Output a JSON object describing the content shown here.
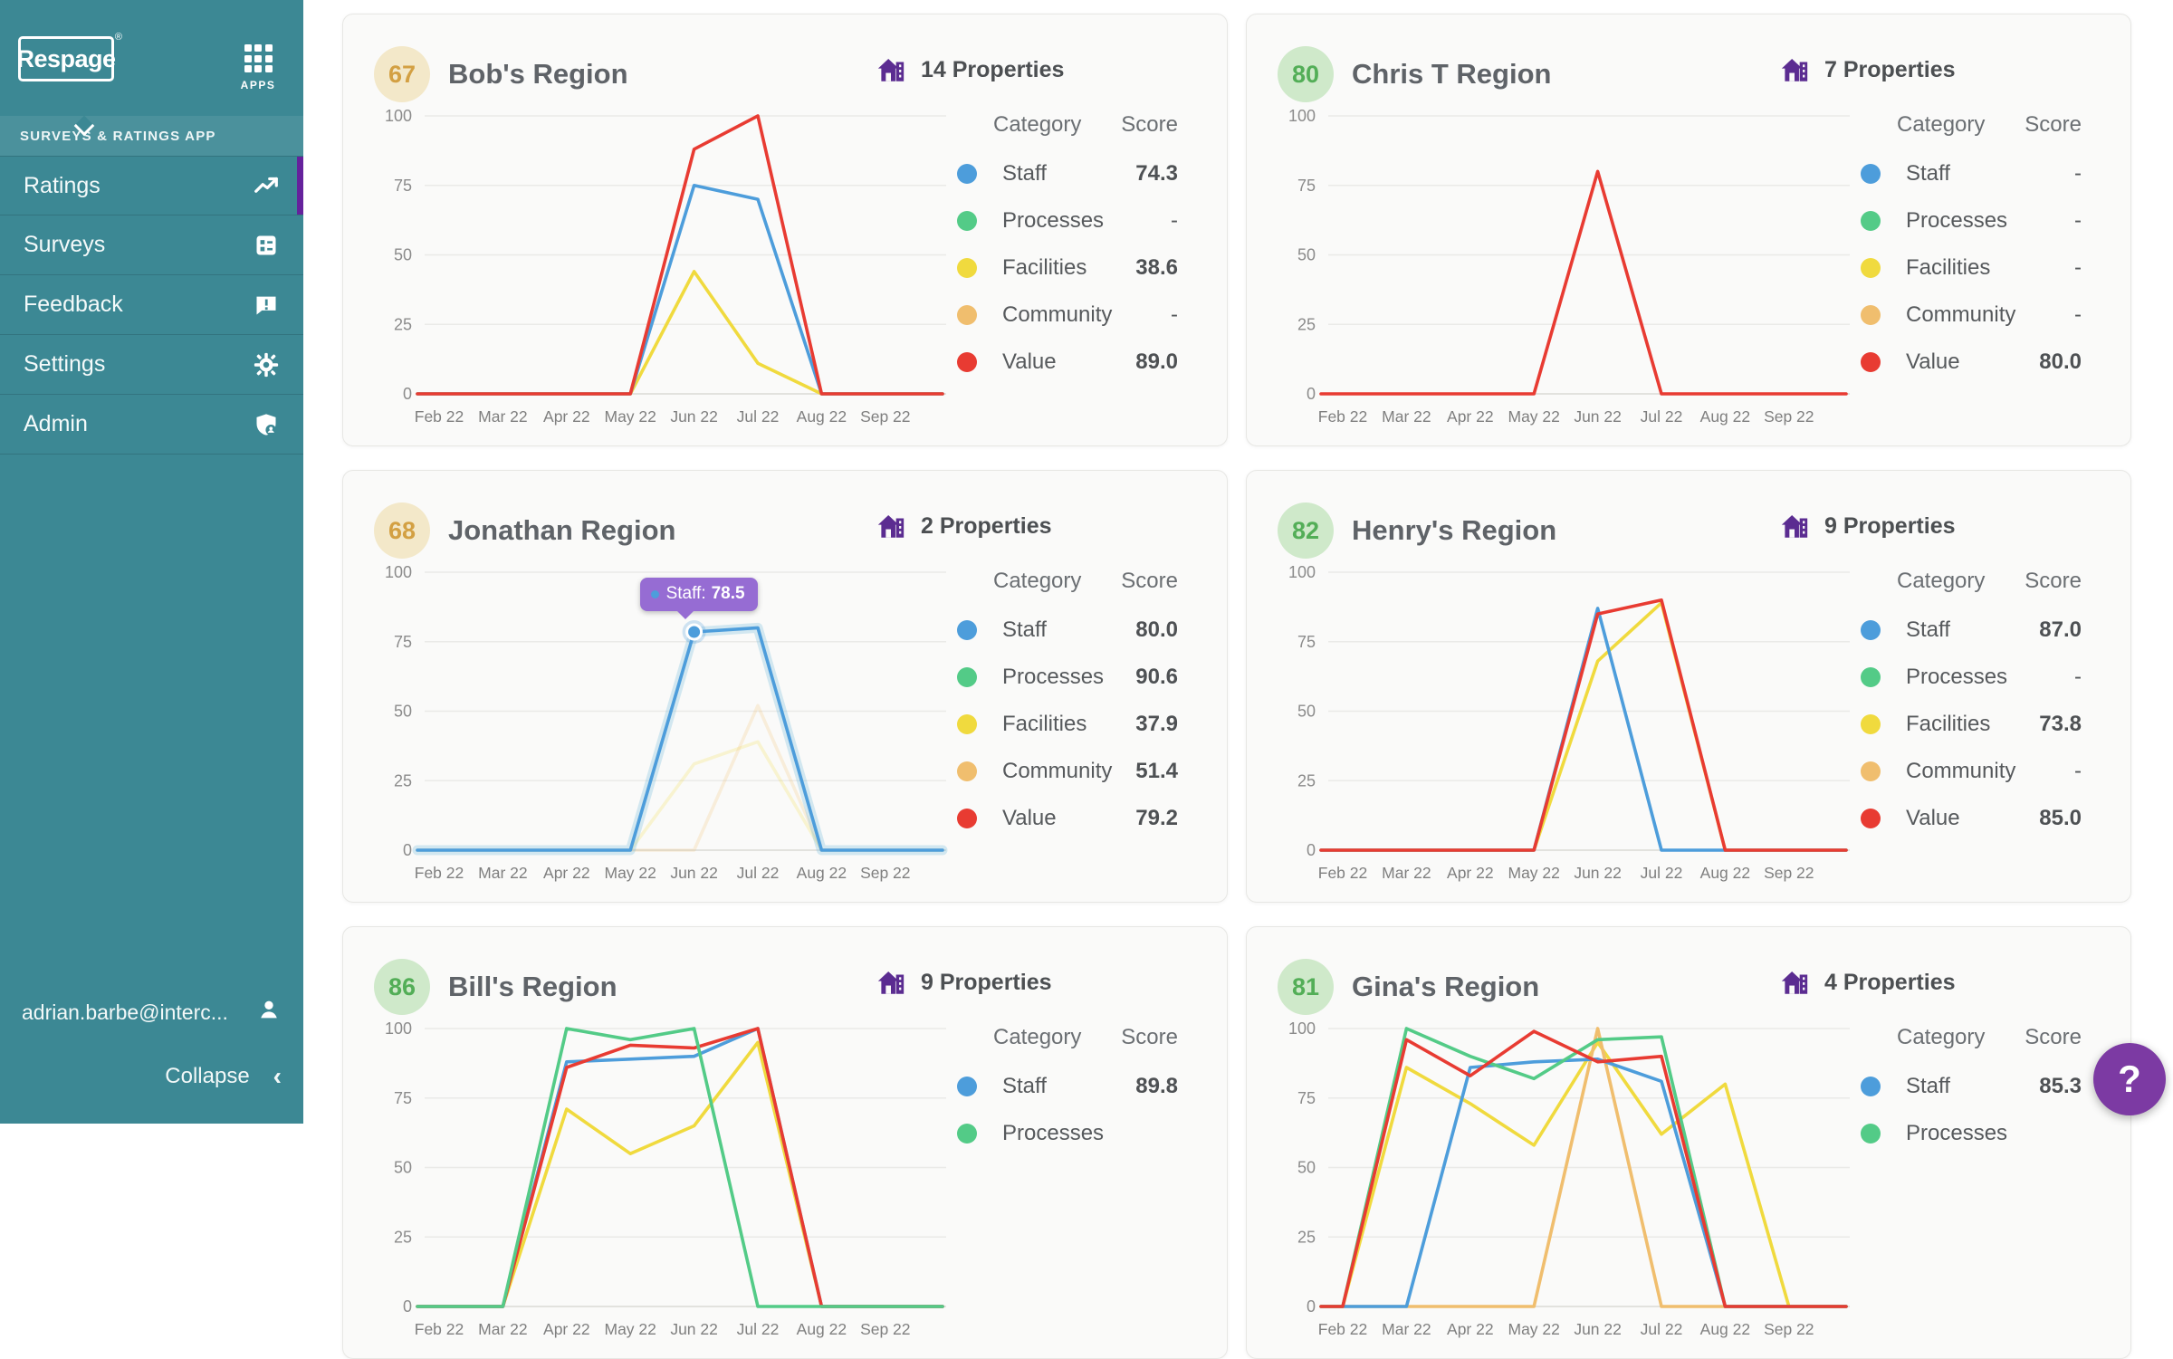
{
  "sidebar": {
    "logo_text": "Respage",
    "logo_reg": "®",
    "apps_label": "APPS",
    "section_label": "SURVEYS & RATINGS APP",
    "items": [
      {
        "label": "Ratings",
        "icon": "trend-icon",
        "active": true
      },
      {
        "label": "Surveys",
        "icon": "survey-form-icon",
        "active": false
      },
      {
        "label": "Feedback",
        "icon": "feedback-bubble-icon",
        "active": false
      },
      {
        "label": "Settings",
        "icon": "gear-icon",
        "active": false
      },
      {
        "label": "Admin",
        "icon": "admin-shield-icon",
        "active": false
      }
    ],
    "user_email": "adrian.barbe@interc...",
    "collapse_label": "Collapse",
    "colors": {
      "background": "#3c8894",
      "active_bar": "#65229c"
    }
  },
  "help_button": {
    "label": "?",
    "color": "#7c3aa3"
  },
  "legend_headers": {
    "category": "Category",
    "score": "Score"
  },
  "months": [
    "Feb 22",
    "Mar 22",
    "Apr 22",
    "May 22",
    "Jun 22",
    "Jul 22",
    "Aug 22",
    "Sep 22"
  ],
  "y_ticks": [
    0,
    25,
    50,
    75,
    100
  ],
  "category_colors": {
    "Staff": "#4d9ddb",
    "Processes": "#53cb87",
    "Facilities": "#f0da3e",
    "Community": "#f0be6e",
    "Value": "#e83b32"
  },
  "properties_icon_color": "#5b2c91",
  "cards": [
    {
      "badge": "67",
      "badge_bg": "#f3e8c9",
      "badge_color": "#d3a043",
      "title": "Bob's Region",
      "properties_label": "14 Properties",
      "legend": [
        {
          "category": "Staff",
          "score": "74.3"
        },
        {
          "category": "Processes",
          "score": "-"
        },
        {
          "category": "Facilities",
          "score": "38.6"
        },
        {
          "category": "Community",
          "score": "-"
        },
        {
          "category": "Value",
          "score": "89.0"
        }
      ],
      "chart_data": {
        "type": "line",
        "x": [
          "Feb 22",
          "Mar 22",
          "Apr 22",
          "May 22",
          "Jun 22",
          "Jul 22",
          "Aug 22",
          "Sep 22"
        ],
        "ylim": [
          0,
          100
        ],
        "series": [
          {
            "name": "Facilities",
            "values": [
              0,
              0,
              0,
              0,
              44,
              11,
              0,
              0
            ]
          },
          {
            "name": "Staff",
            "values": [
              0,
              0,
              0,
              0,
              75,
              70,
              0,
              0
            ]
          },
          {
            "name": "Value",
            "values": [
              0,
              0,
              0,
              0,
              88,
              100,
              0,
              0
            ]
          }
        ]
      },
      "tooltip": null
    },
    {
      "badge": "80",
      "badge_bg": "#cfe9ca",
      "badge_color": "#53ae57",
      "title": "Chris T Region",
      "properties_label": "7 Properties",
      "legend": [
        {
          "category": "Staff",
          "score": "-"
        },
        {
          "category": "Processes",
          "score": "-"
        },
        {
          "category": "Facilities",
          "score": "-"
        },
        {
          "category": "Community",
          "score": "-"
        },
        {
          "category": "Value",
          "score": "80.0"
        }
      ],
      "chart_data": {
        "type": "line",
        "x": [
          "Feb 22",
          "Mar 22",
          "Apr 22",
          "May 22",
          "Jun 22",
          "Jul 22",
          "Aug 22",
          "Sep 22"
        ],
        "ylim": [
          0,
          100
        ],
        "series": [
          {
            "name": "Value",
            "values": [
              0,
              0,
              0,
              0,
              80,
              0,
              0,
              0
            ]
          }
        ]
      },
      "tooltip": null
    },
    {
      "badge": "68",
      "badge_bg": "#f3e8c9",
      "badge_color": "#d3a043",
      "title": "Jonathan Region",
      "properties_label": "2 Properties",
      "legend": [
        {
          "category": "Staff",
          "score": "80.0"
        },
        {
          "category": "Processes",
          "score": "90.6"
        },
        {
          "category": "Facilities",
          "score": "37.9"
        },
        {
          "category": "Community",
          "score": "51.4"
        },
        {
          "category": "Value",
          "score": "79.2"
        }
      ],
      "chart_data": {
        "type": "line",
        "x": [
          "Feb 22",
          "Mar 22",
          "Apr 22",
          "May 22",
          "Jun 22",
          "Jul 22",
          "Aug 22",
          "Sep 22"
        ],
        "ylim": [
          0,
          100
        ],
        "series": [
          {
            "name": "Facilities",
            "values": [
              0,
              0,
              0,
              0,
              31,
              39,
              0,
              0
            ],
            "faded": true
          },
          {
            "name": "Community",
            "values": [
              0,
              0,
              0,
              0,
              0,
              52,
              0,
              0
            ],
            "faded": true
          },
          {
            "name": "Staff",
            "values": [
              0,
              0,
              0,
              0,
              78.5,
              80,
              0,
              0
            ],
            "halo": true
          }
        ]
      },
      "tooltip": {
        "label": "Staff:",
        "value": "78.5",
        "month_index": 4,
        "y": 78.5
      }
    },
    {
      "badge": "82",
      "badge_bg": "#cfe9ca",
      "badge_color": "#53ae57",
      "title": "Henry's Region",
      "properties_label": "9 Properties",
      "legend": [
        {
          "category": "Staff",
          "score": "87.0"
        },
        {
          "category": "Processes",
          "score": "-"
        },
        {
          "category": "Facilities",
          "score": "73.8"
        },
        {
          "category": "Community",
          "score": "-"
        },
        {
          "category": "Value",
          "score": "85.0"
        }
      ],
      "chart_data": {
        "type": "line",
        "x": [
          "Feb 22",
          "Mar 22",
          "Apr 22",
          "May 22",
          "Jun 22",
          "Jul 22",
          "Aug 22",
          "Sep 22"
        ],
        "ylim": [
          0,
          100
        ],
        "series": [
          {
            "name": "Facilities",
            "values": [
              0,
              0,
              0,
              0,
              68,
              89,
              0,
              0
            ]
          },
          {
            "name": "Staff",
            "values": [
              0,
              0,
              0,
              0,
              87,
              0,
              0,
              0
            ]
          },
          {
            "name": "Value",
            "values": [
              0,
              0,
              0,
              0,
              85,
              90,
              0,
              0
            ]
          }
        ]
      },
      "tooltip": null
    },
    {
      "badge": "86",
      "badge_bg": "#cfe9ca",
      "badge_color": "#53ae57",
      "title": "Bill's Region",
      "properties_label": "9 Properties",
      "legend": [
        {
          "category": "Staff",
          "score": "89.8"
        },
        {
          "category": "Processes",
          "score": ""
        }
      ],
      "chart_data": {
        "type": "line",
        "x": [
          "Feb 22",
          "Mar 22",
          "Apr 22",
          "May 22",
          "Jun 22",
          "Jul 22",
          "Aug 22",
          "Sep 22"
        ],
        "ylim": [
          0,
          100
        ],
        "series": [
          {
            "name": "Facilities",
            "values": [
              0,
              0,
              71,
              55,
              65,
              95,
              0,
              0
            ]
          },
          {
            "name": "Staff",
            "values": [
              0,
              0,
              88,
              89,
              90,
              100,
              0,
              0
            ]
          },
          {
            "name": "Value",
            "values": [
              0,
              0,
              86,
              94,
              93,
              100,
              0,
              0
            ]
          },
          {
            "name": "Processes",
            "values": [
              0,
              0,
              100,
              96,
              100,
              0,
              0,
              0
            ]
          }
        ]
      },
      "tooltip": null
    },
    {
      "badge": "81",
      "badge_bg": "#cfe9ca",
      "badge_color": "#53ae57",
      "title": "Gina's Region",
      "properties_label": "4 Properties",
      "legend": [
        {
          "category": "Staff",
          "score": "85.3"
        },
        {
          "category": "Processes",
          "score": ""
        }
      ],
      "chart_data": {
        "type": "line",
        "x": [
          "Feb 22",
          "Mar 22",
          "Apr 22",
          "May 22",
          "Jun 22",
          "Jul 22",
          "Aug 22",
          "Sep 22"
        ],
        "ylim": [
          0,
          100
        ],
        "series": [
          {
            "name": "Facilities",
            "values": [
              0,
              86,
              73,
              58,
              95,
              62,
              80,
              0
            ]
          },
          {
            "name": "Community",
            "values": [
              0,
              0,
              0,
              0,
              100,
              0,
              0,
              0
            ]
          },
          {
            "name": "Staff",
            "values": [
              0,
              0,
              86,
              88,
              89,
              81,
              0,
              0
            ]
          },
          {
            "name": "Processes",
            "values": [
              0,
              100,
              90,
              82,
              96,
              97,
              0,
              0
            ]
          },
          {
            "name": "Value",
            "values": [
              0,
              96,
              83,
              99,
              88,
              90,
              0,
              0
            ]
          }
        ]
      },
      "tooltip": null
    }
  ]
}
